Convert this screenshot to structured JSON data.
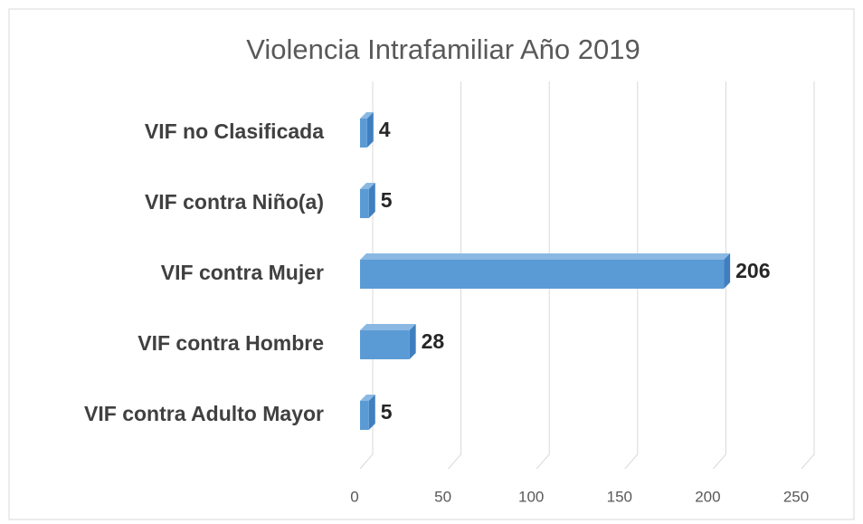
{
  "chart_data": {
    "type": "bar3d",
    "orientation": "horizontal",
    "title": "Violencia Intrafamiliar Año 2019",
    "categories": [
      "VIF no Clasificada",
      "VIF contra Niño(a)",
      "VIF contra Mujer",
      "VIF contra Hombre",
      "VIF contra Adulto Mayor"
    ],
    "values": [
      4,
      5,
      206,
      28,
      5
    ],
    "color": "#5b9bd5",
    "xlim": [
      0,
      250
    ],
    "xticks": [
      0,
      50,
      100,
      150,
      200,
      250
    ],
    "grid": true
  }
}
